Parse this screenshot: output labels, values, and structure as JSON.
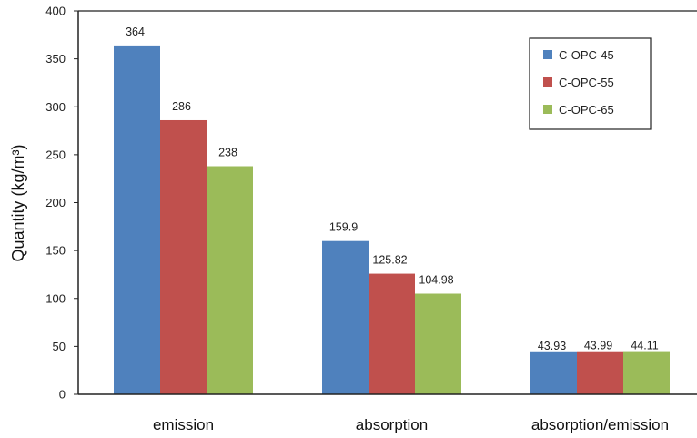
{
  "chart_data": {
    "type": "bar",
    "categories": [
      "emission",
      "absorption",
      "absorption/emission"
    ],
    "series": [
      {
        "name": "C-OPC-45",
        "color": "#4f81bd",
        "values": [
          364,
          159.9,
          43.93
        ],
        "labels": [
          "364",
          "159.9",
          "43.93"
        ]
      },
      {
        "name": "C-OPC-55",
        "color": "#c0504d",
        "values": [
          286,
          125.82,
          43.99
        ],
        "labels": [
          "286",
          "125.82",
          "43.99"
        ]
      },
      {
        "name": "C-OPC-65",
        "color": "#9bbb59",
        "values": [
          238,
          104.98,
          44.11
        ],
        "labels": [
          "238",
          "104.98",
          "44.11"
        ]
      }
    ],
    "ylabel": "Quantity (kg/m³)",
    "xlabel": "",
    "ylim": [
      0,
      400
    ],
    "yticks": [
      "0",
      "50",
      "100",
      "150",
      "200",
      "250",
      "300",
      "350",
      "400"
    ],
    "grid": false,
    "legend_position": "top-right"
  }
}
